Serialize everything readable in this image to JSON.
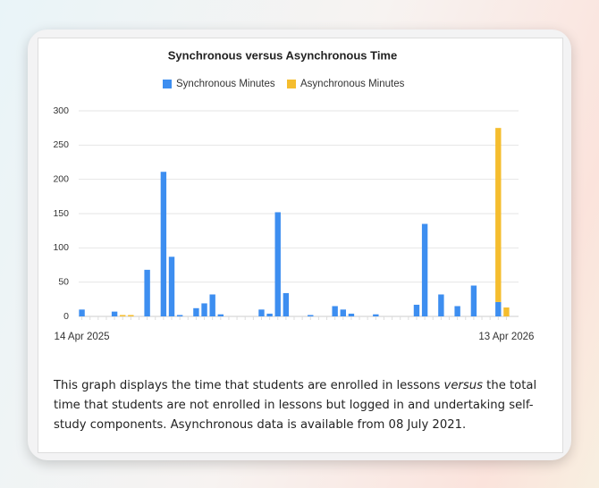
{
  "chart_data": {
    "type": "bar",
    "stacked": true,
    "title": "Synchronous versus Asynchronous Time",
    "categories": [
      "14 Apr 2025",
      null,
      null,
      null,
      null,
      null,
      null,
      null,
      null,
      null,
      null,
      null,
      null,
      null,
      null,
      null,
      null,
      null,
      null,
      null,
      null,
      null,
      null,
      null,
      null,
      null,
      null,
      null,
      null,
      null,
      null,
      null,
      null,
      null,
      null,
      null,
      null,
      null,
      null,
      null,
      null,
      null,
      null,
      null,
      null,
      null,
      null,
      null,
      null,
      null,
      null,
      null,
      "13 Apr 2026"
    ],
    "series": [
      {
        "name": "Synchronous Minutes",
        "color": "#3d8ef0",
        "values": [
          10,
          0,
          0,
          0,
          7,
          0,
          0,
          0,
          68,
          0,
          211,
          87,
          2,
          0,
          12,
          19,
          32,
          3,
          0,
          0,
          0,
          0,
          10,
          4,
          152,
          34,
          0,
          0,
          2,
          0,
          0,
          15,
          10,
          4,
          0,
          0,
          3,
          0,
          0,
          0,
          0,
          17,
          135,
          0,
          32,
          0,
          15,
          0,
          45,
          0,
          0,
          21,
          0
        ]
      },
      {
        "name": "Asynchronous Minutes",
        "color": "#f5bd2e",
        "values": [
          0,
          0,
          0,
          0,
          0,
          2,
          2,
          0,
          0,
          0,
          0,
          0,
          0,
          0,
          0,
          0,
          0,
          0,
          0,
          0,
          0,
          0,
          0,
          0,
          0,
          0,
          0,
          0,
          0,
          0,
          0,
          0,
          0,
          0,
          0,
          0,
          0,
          0,
          0,
          0,
          0,
          0,
          0,
          0,
          0,
          0,
          0,
          0,
          0,
          0,
          0,
          254,
          13
        ]
      }
    ],
    "ylim": [
      0,
      300
    ],
    "yticks": [
      0,
      50,
      100,
      150,
      200,
      250,
      300
    ],
    "grid": true,
    "legend": "top"
  },
  "description": [
    "This graph displays the time that students are enrolled in lessons ",
    "versus",
    " the total time that students are not enrolled in lessons but logged in and undertaking self-study components. Asynchronous data is available from 08 July 2021."
  ]
}
